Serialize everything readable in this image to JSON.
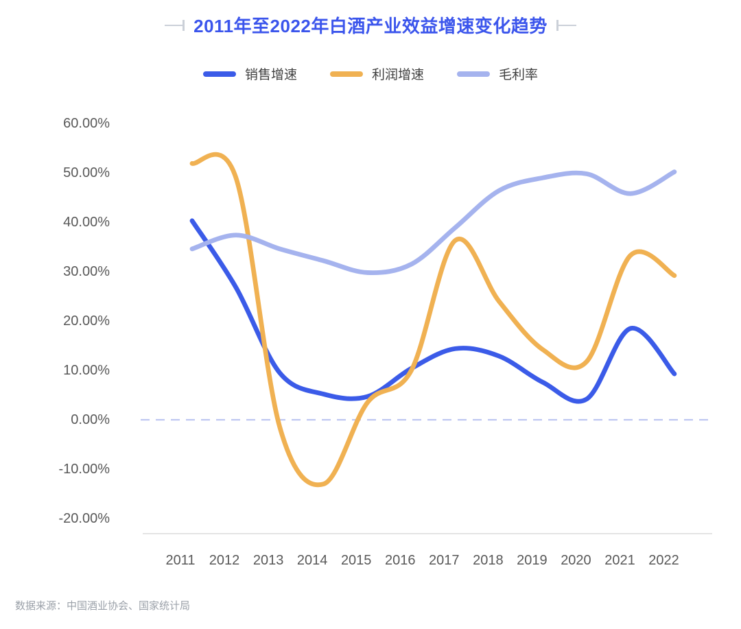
{
  "page": {
    "title": "2011年至2022年白酒产业效益增速变化趋势",
    "source": "数据来源：中国酒业协会、国家统计局"
  },
  "chart_data": {
    "type": "line",
    "title": "2011年至2022年白酒产业效益增速变化趋势",
    "smooth": true,
    "legend_position": "top",
    "grid": "zero-line-only",
    "zero_line_style": "dashed",
    "ylim": [
      -20,
      60
    ],
    "xlabel": "",
    "ylabel": "",
    "categories": [
      "2011",
      "2012",
      "2013",
      "2014",
      "2015",
      "2016",
      "2017",
      "2018",
      "2019",
      "2020",
      "2021",
      "2022"
    ],
    "series": [
      {
        "name": "销售增速",
        "color": "#3b5be8",
        "values": [
          40.3,
          26.8,
          9.5,
          5.2,
          4.7,
          10.4,
          14.4,
          12.9,
          7.6,
          4.2,
          18.5,
          9.3
        ]
      },
      {
        "name": "利润增速",
        "color": "#f0b152",
        "values": [
          51.9,
          49.0,
          -1.5,
          -13.0,
          3.5,
          10.0,
          36.3,
          24.0,
          14.2,
          11.8,
          33.3,
          29.2
        ]
      },
      {
        "name": "毛利率",
        "color": "#a5b3ee",
        "values": [
          34.6,
          37.4,
          34.6,
          32.2,
          29.8,
          31.5,
          38.9,
          46.4,
          49.0,
          49.8,
          45.8,
          50.2
        ]
      }
    ],
    "y_ticks": [
      {
        "label": "60.00%",
        "value": 60
      },
      {
        "label": "50.00%",
        "value": 50
      },
      {
        "label": "40.00%",
        "value": 40
      },
      {
        "label": "30.00%",
        "value": 30
      },
      {
        "label": "20.00%",
        "value": 20
      },
      {
        "label": "10.00%",
        "value": 10
      },
      {
        "label": "0.00%",
        "value": 0
      },
      {
        "label": "-10.00%",
        "value": -10
      },
      {
        "label": "-20.00%",
        "value": -20
      }
    ]
  },
  "style": {
    "title_color": "#3b55ec",
    "deco_color": "#cbd0d8",
    "legend_text_color": "#3f3f3f",
    "axis_text_color": "#585858",
    "zero_line_color": "#bec7f1",
    "axis_line_color": "#e4e4e4",
    "source_text_color": "#9ba1a9"
  }
}
